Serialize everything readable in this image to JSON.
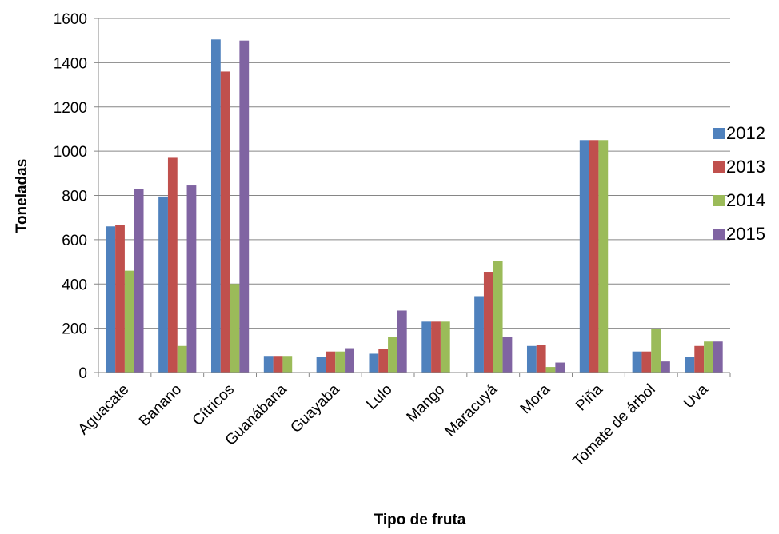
{
  "chart_data": {
    "type": "bar",
    "title": "",
    "xlabel": "Tipo de fruta",
    "ylabel": "Toneladas",
    "ylim": [
      0,
      1600
    ],
    "yticks": [
      0,
      200,
      400,
      600,
      800,
      1000,
      1200,
      1400,
      1600
    ],
    "grid": true,
    "legend_position": "right",
    "categories": [
      "Aguacate",
      "Banano",
      "Cítricos",
      "Guanábana",
      "Guayaba",
      "Lulo",
      "Mango",
      "Maracuyá",
      "Mora",
      "Piña",
      "Tomate de árbol",
      "Uva"
    ],
    "series": [
      {
        "name": "2012",
        "color": "#4F81BD",
        "values": [
          660,
          795,
          1505,
          75,
          70,
          85,
          230,
          345,
          120,
          1050,
          95,
          70
        ]
      },
      {
        "name": "2013",
        "color": "#C0504D",
        "values": [
          665,
          970,
          1360,
          75,
          95,
          105,
          230,
          455,
          125,
          1050,
          95,
          120
        ]
      },
      {
        "name": "2014",
        "color": "#9BBB59",
        "values": [
          460,
          120,
          400,
          75,
          95,
          160,
          230,
          505,
          25,
          1050,
          195,
          140
        ]
      },
      {
        "name": "2015",
        "color": "#8064A2",
        "values": [
          830,
          845,
          1500,
          0,
          110,
          280,
          0,
          160,
          45,
          0,
          50,
          140
        ]
      }
    ]
  }
}
